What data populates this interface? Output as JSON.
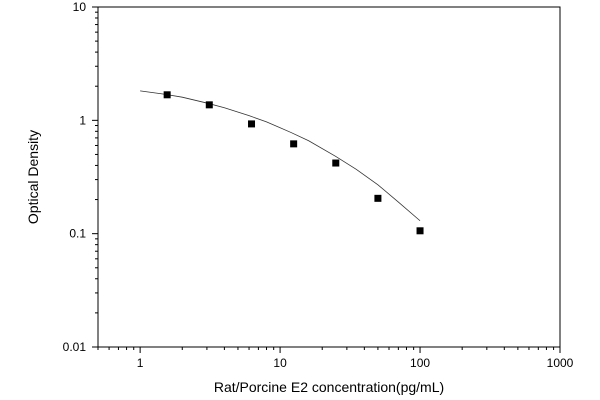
{
  "chart_data": {
    "type": "scatter",
    "title": "",
    "xlabel": "Rat/Porcine E2 concentration(pg/mL)",
    "ylabel": "Optical Density",
    "x_scale": "log",
    "y_scale": "log",
    "xlim": [
      0.5,
      1000
    ],
    "ylim": [
      0.01,
      10
    ],
    "x_ticks": [
      1,
      10,
      100,
      1000
    ],
    "x_tick_labels": [
      "1",
      "10",
      "100",
      "1000"
    ],
    "y_ticks": [
      0.01,
      0.1,
      1,
      10
    ],
    "y_tick_labels": [
      "0.01",
      "0.1",
      "1",
      "10"
    ],
    "grid": false,
    "legend": "none",
    "series": [
      {
        "kind": "points",
        "marker": "square",
        "x": [
          1.56,
          3.12,
          6.25,
          12.5,
          25,
          50,
          100
        ],
        "y": [
          1.68,
          1.37,
          0.93,
          0.62,
          0.42,
          0.205,
          0.106
        ]
      },
      {
        "kind": "fit-curve",
        "style": "solid thin",
        "x": [
          1,
          1.5,
          2,
          3,
          4,
          6,
          8,
          12,
          16,
          25,
          35,
          50,
          70,
          100
        ],
        "y": [
          1.82,
          1.7,
          1.6,
          1.42,
          1.29,
          1.1,
          0.97,
          0.78,
          0.66,
          0.48,
          0.37,
          0.27,
          0.19,
          0.13
        ]
      }
    ]
  },
  "colors": {
    "background": "#ffffff",
    "axis": "#000000",
    "marker": "#000000",
    "curve": "#333333"
  }
}
